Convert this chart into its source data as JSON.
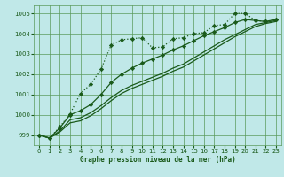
{
  "bg_color": "#c0e8e8",
  "grid_color": "#5a9a5a",
  "line_color": "#1a5a1a",
  "marker_color": "#1a5a1a",
  "xlabel": "Graphe pression niveau de la mer (hPa)",
  "ylim": [
    998.5,
    1005.4
  ],
  "xlim": [
    -0.5,
    23.5
  ],
  "yticks": [
    999,
    1000,
    1001,
    1002,
    1003,
    1004,
    1005
  ],
  "xticks": [
    0,
    1,
    2,
    3,
    4,
    5,
    6,
    7,
    8,
    9,
    10,
    11,
    12,
    13,
    14,
    15,
    16,
    17,
    18,
    19,
    20,
    21,
    22,
    23
  ],
  "series1_x": [
    0,
    1,
    2,
    3,
    4,
    5,
    6,
    7,
    8,
    9,
    10,
    11,
    12,
    13,
    14,
    15,
    16,
    17,
    18,
    19,
    20,
    21,
    22,
    23
  ],
  "series1_y": [
    999.0,
    998.85,
    999.4,
    1000.05,
    1001.05,
    1001.5,
    1002.25,
    1003.45,
    1003.7,
    1003.75,
    1003.8,
    1003.3,
    1003.35,
    1003.75,
    1003.8,
    1004.0,
    1004.05,
    1004.4,
    1004.45,
    1005.0,
    1005.0,
    1004.65,
    1004.6,
    1004.7
  ],
  "series2_x": [
    0,
    1,
    2,
    3,
    4,
    5,
    6,
    7,
    8,
    9,
    10,
    11,
    12,
    13,
    14,
    15,
    16,
    17,
    18,
    19,
    20,
    21,
    22,
    23
  ],
  "series2_y": [
    999.0,
    998.85,
    999.35,
    1000.0,
    1000.2,
    1000.5,
    1001.0,
    1001.6,
    1002.0,
    1002.3,
    1002.55,
    1002.75,
    1002.95,
    1003.2,
    1003.4,
    1003.65,
    1003.9,
    1004.1,
    1004.3,
    1004.55,
    1004.7,
    1004.65,
    1004.6,
    1004.7
  ],
  "series3_x": [
    0,
    1,
    2,
    3,
    4,
    5,
    6,
    7,
    8,
    9,
    10,
    11,
    12,
    13,
    14,
    15,
    16,
    17,
    18,
    19,
    20,
    21,
    22,
    23
  ],
  "series3_y": [
    999.0,
    998.85,
    999.2,
    999.75,
    999.85,
    1000.1,
    1000.45,
    1000.85,
    1001.2,
    1001.45,
    1001.65,
    1001.85,
    1002.05,
    1002.3,
    1002.5,
    1002.8,
    1003.1,
    1003.4,
    1003.7,
    1003.95,
    1004.2,
    1004.45,
    1004.55,
    1004.65
  ],
  "series4_x": [
    0,
    1,
    2,
    3,
    4,
    5,
    6,
    7,
    8,
    9,
    10,
    11,
    12,
    13,
    14,
    15,
    16,
    17,
    18,
    19,
    20,
    21,
    22,
    23
  ],
  "series4_y": [
    999.0,
    998.85,
    999.15,
    999.6,
    999.7,
    999.95,
    1000.3,
    1000.7,
    1001.05,
    1001.3,
    1001.5,
    1001.7,
    1001.9,
    1002.15,
    1002.35,
    1002.65,
    1002.95,
    1003.25,
    1003.55,
    1003.85,
    1004.1,
    1004.35,
    1004.5,
    1004.6
  ]
}
